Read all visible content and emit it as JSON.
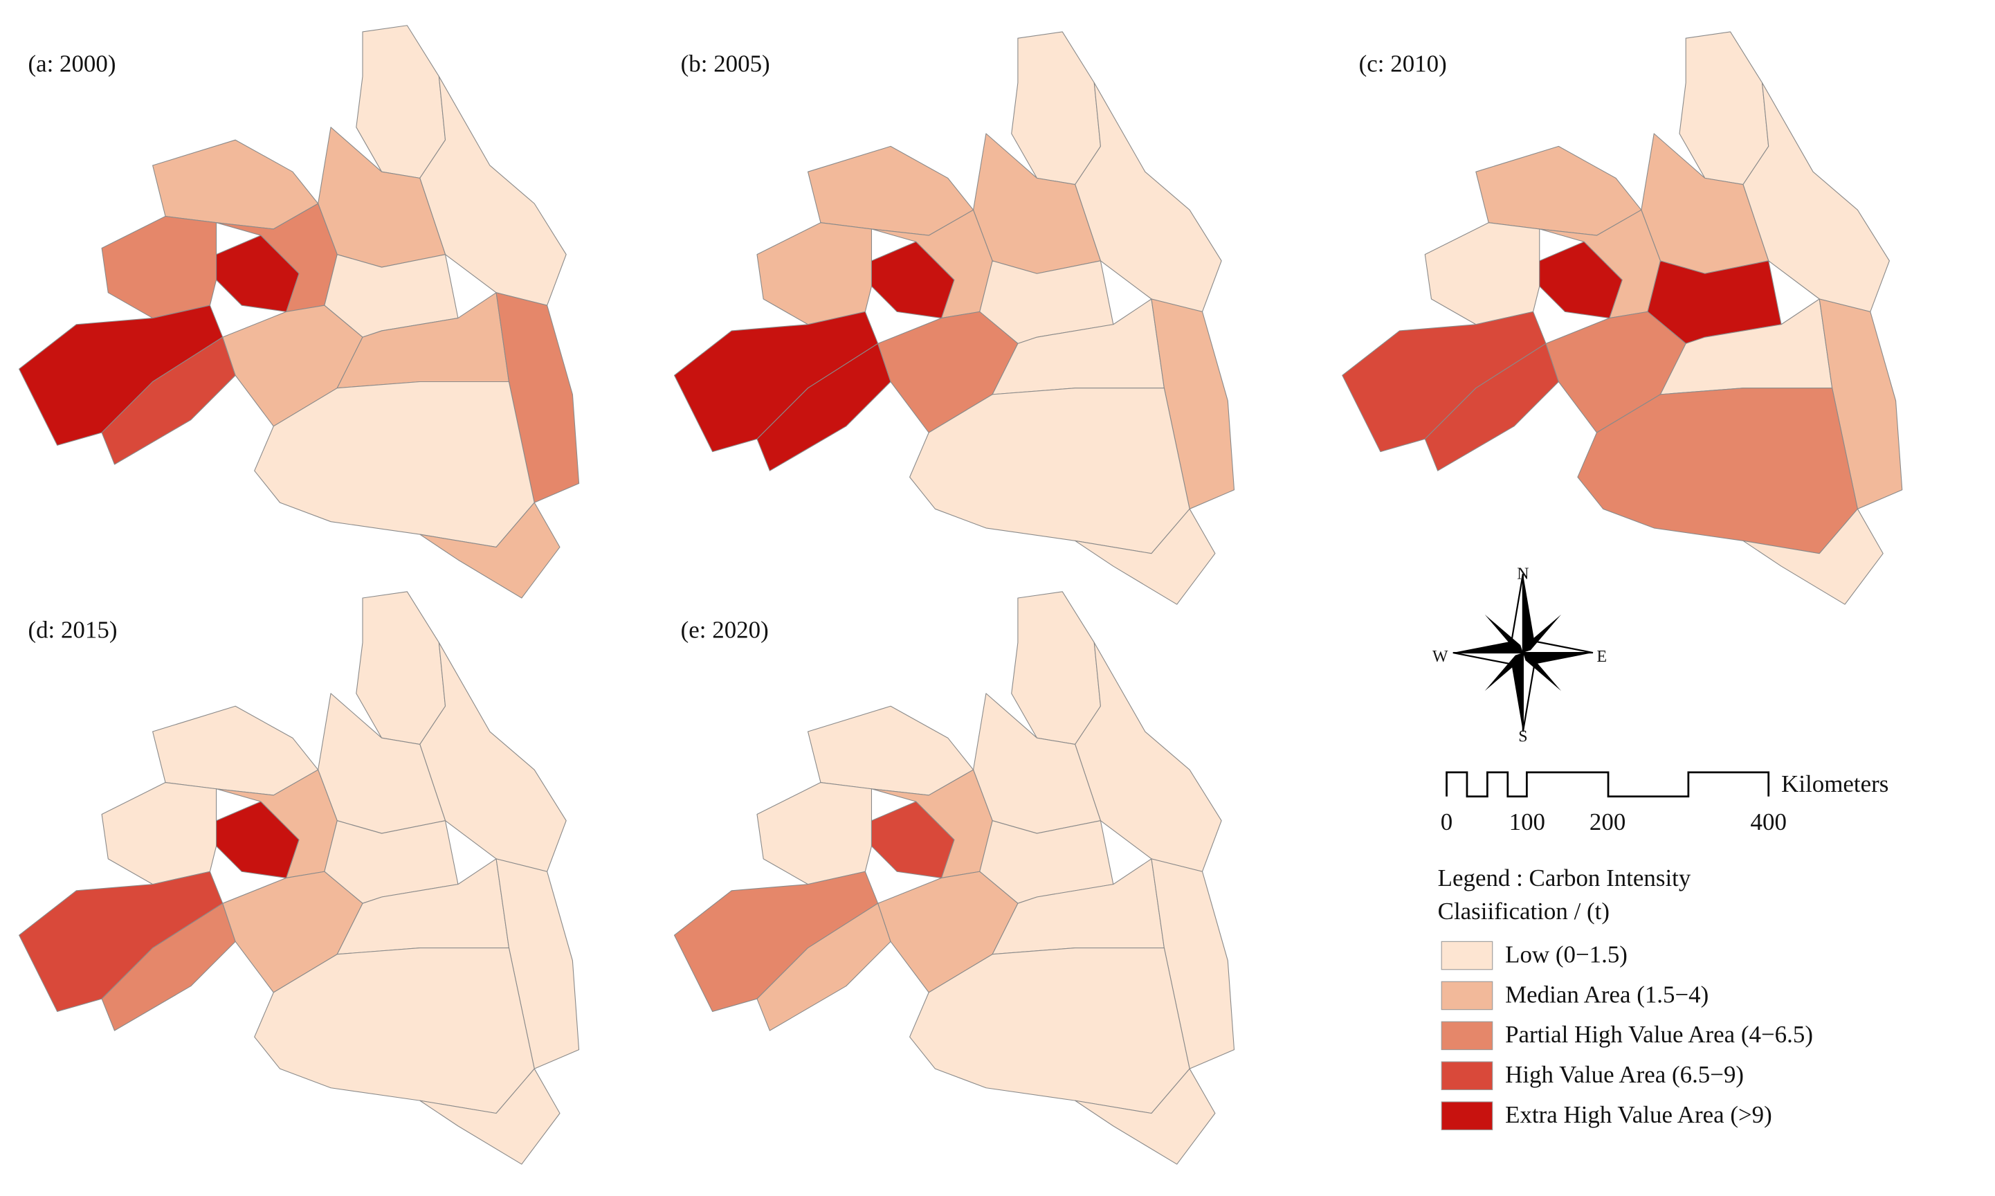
{
  "panels": [
    {
      "title": "(a: 2000)",
      "fills": [
        "#fde5d2",
        "#fde5d2",
        "#f2b99a",
        "#f2b99a",
        "#e5876a",
        "#c8120f",
        "#e5876a",
        "#fde5d2",
        "#c8120f",
        "#d9493a",
        "#f2b99a",
        "#f2b99a",
        "#e5876a",
        "#fde5d2",
        "#f2b99a"
      ]
    },
    {
      "title": "(b: 2005)",
      "fills": [
        "#fde5d2",
        "#fde5d2",
        "#f2b99a",
        "#f2b99a",
        "#f2b99a",
        "#c8120f",
        "#f2b99a",
        "#fde5d2",
        "#c8120f",
        "#c8120f",
        "#e5876a",
        "#fde5d2",
        "#f2b99a",
        "#fde5d2",
        "#fde5d2"
      ]
    },
    {
      "title": "(c: 2010)",
      "fills": [
        "#fde5d2",
        "#fde5d2",
        "#f2b99a",
        "#f2b99a",
        "#fde5d2",
        "#c8120f",
        "#f2b99a",
        "#c8120f",
        "#d9493a",
        "#d9493a",
        "#e5876a",
        "#fde5d2",
        "#f2b99a",
        "#e5876a",
        "#fde5d2"
      ]
    },
    {
      "title": "(d: 2015)",
      "fills": [
        "#fde5d2",
        "#fde5d2",
        "#fde5d2",
        "#fde5d2",
        "#fde5d2",
        "#c8120f",
        "#f2b99a",
        "#fde5d2",
        "#d9493a",
        "#e5876a",
        "#f2b99a",
        "#fde5d2",
        "#fde5d2",
        "#fde5d2",
        "#fde5d2"
      ]
    },
    {
      "title": "(e: 2020)",
      "fills": [
        "#fde5d2",
        "#fde5d2",
        "#fde5d2",
        "#fde5d2",
        "#fde5d2",
        "#d9493a",
        "#f2b99a",
        "#fde5d2",
        "#e5876a",
        "#f2b99a",
        "#f2b99a",
        "#fde5d2",
        "#fde5d2",
        "#fde5d2",
        "#fde5d2"
      ]
    }
  ],
  "compass": {
    "north": "N",
    "south": "S",
    "west": "W",
    "east": "E"
  },
  "scale_bar": {
    "ticks": [
      0,
      100,
      200,
      400
    ],
    "unit": "Kilometers"
  },
  "legend": {
    "title": "Legend : Carbon Intensity",
    "subtitle": "Clasiification / (t)",
    "items": [
      {
        "label": "Low (0−1.5)",
        "color": "#fde5d2"
      },
      {
        "label": "Median Area (1.5−4)",
        "color": "#f2b99a"
      },
      {
        "label": "Partial High Value Area (4−6.5)",
        "color": "#e5876a"
      },
      {
        "label": "High Value Area (6.5−9)",
        "color": "#d9493a"
      },
      {
        "label": "Extra High Value Area (>9)",
        "color": "#c8120f"
      }
    ]
  }
}
